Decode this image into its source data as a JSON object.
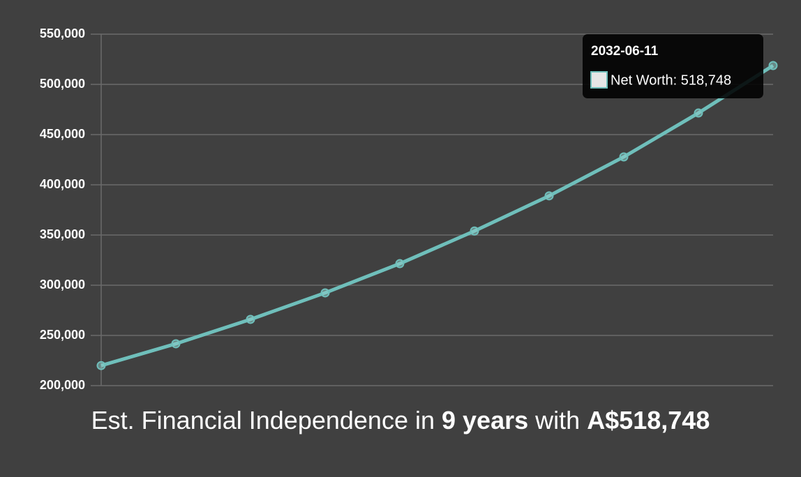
{
  "chart_data": {
    "type": "line",
    "categories": [
      null,
      null,
      null,
      null,
      null,
      null,
      null,
      null,
      null,
      "2032-06-11"
    ],
    "series": [
      {
        "name": "Net Worth",
        "color": "#6fbfbb",
        "values": [
          220000,
          241700,
          266000,
          292400,
          321500,
          354000,
          389000,
          427800,
          471500,
          518748
        ]
      }
    ],
    "ylim": [
      200000,
      550000
    ],
    "yticks": [
      {
        "value": 200000,
        "label": "200,000"
      },
      {
        "value": 250000,
        "label": "250,000"
      },
      {
        "value": 300000,
        "label": "300,000"
      },
      {
        "value": 350000,
        "label": "350,000"
      },
      {
        "value": 400000,
        "label": "400,000"
      },
      {
        "value": 450000,
        "label": "450,000"
      },
      {
        "value": 500000,
        "label": "500,000"
      },
      {
        "value": 550000,
        "label": "550,000"
      }
    ],
    "grid": true,
    "tooltip": {
      "title": "2032-06-11",
      "text": "Net Worth: 518,748"
    },
    "caption": {
      "prefix": "Est. Financial Independence in",
      "years": "9 years",
      "middle": "with",
      "amount": "A$518,748"
    }
  }
}
